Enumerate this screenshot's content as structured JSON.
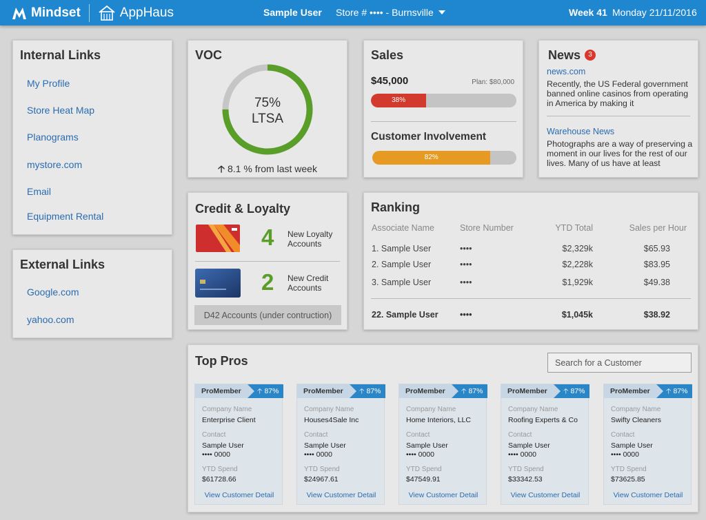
{
  "header": {
    "brand": "Mindset",
    "app": "AppHaus",
    "user": "Sample User",
    "store": "Store # •••• - Burnsville",
    "week": "Week 41",
    "date": "Monday 21/11/2016",
    "color": "#1f87cf"
  },
  "internal_links": {
    "title": "Internal Links",
    "items": [
      "My Profile",
      "Store Heat Map",
      "Planograms",
      "mystore.com",
      "Email",
      "Equipment Rental"
    ]
  },
  "external_links": {
    "title": "External Links",
    "items": [
      "Google.com",
      "yahoo.com"
    ]
  },
  "voc": {
    "title": "VOC",
    "percent": "75%",
    "label": "LTSA",
    "value": 75,
    "trend": "8.1 % from last week"
  },
  "sales": {
    "title": "Sales",
    "amount": "$45,000",
    "plan": "Plan: $80,000",
    "sales_pct": 38,
    "sales_pct_label": "38%",
    "involvement_title": "Customer Involvement",
    "involvement_pct": 82,
    "involvement_pct_label": "82%"
  },
  "news": {
    "title": "News",
    "count": "3",
    "items": [
      {
        "source": "news.com",
        "text": "Recently, the US Federal government banned online casinos from operating in America by making it"
      },
      {
        "source": "Warehouse News",
        "text": "Photographs are a way of preserving a moment in our lives for the rest of our lives. Many of us have at least"
      }
    ]
  },
  "credit": {
    "title": "Credit & Loyalty",
    "loyalty_count": "4",
    "loyalty_label": "New Loyalty Accounts",
    "credit_count": "2",
    "credit_label": "New Credit Accounts",
    "button": "D42 Accounts (under contruction)"
  },
  "ranking": {
    "title": "Ranking",
    "headers": [
      "Associate Name",
      "Store Number",
      "YTD Total",
      "Sales per Hour"
    ],
    "rows": [
      [
        "1. Sample User",
        "••••",
        "$2,329k",
        "$65.93"
      ],
      [
        "2. Sample User",
        "••••",
        "$2,228k",
        "$83.95"
      ],
      [
        "3. Sample User",
        "••••",
        "$1,929k",
        "$49.38"
      ]
    ],
    "me": [
      "22. Sample User",
      "••••",
      "$1,045k",
      "$38.92"
    ]
  },
  "top_pros": {
    "title": "Top Pros",
    "search_placeholder": "Search for a Customer",
    "company_label": "Company Name",
    "contact_label": "Contact",
    "spend_label": "YTD Spend",
    "link_label": "View Customer Detail",
    "cards": [
      {
        "tag": "ProMember",
        "pct": "87%",
        "company": "Enterprise Client",
        "contact": "Sample User",
        "phone": "•••• 0000",
        "spend": "$61728.66"
      },
      {
        "tag": "ProMember",
        "pct": "87%",
        "company": "Houses4Sale Inc",
        "contact": "Sample User",
        "phone": "•••• 0000",
        "spend": "$24967.61"
      },
      {
        "tag": "ProMember",
        "pct": "87%",
        "company": "Home Interiors, LLC",
        "contact": "Sample User",
        "phone": "•••• 0000",
        "spend": "$47549.91"
      },
      {
        "tag": "ProMember",
        "pct": "87%",
        "company": "Roofing Experts & Co",
        "contact": "Sample User",
        "phone": "•••• 0000",
        "spend": "$33342.53"
      },
      {
        "tag": "ProMember",
        "pct": "87%",
        "company": "Swifty Cleaners",
        "contact": "Sample User",
        "phone": "•••• 0000",
        "spend": "$73625.85"
      }
    ]
  }
}
